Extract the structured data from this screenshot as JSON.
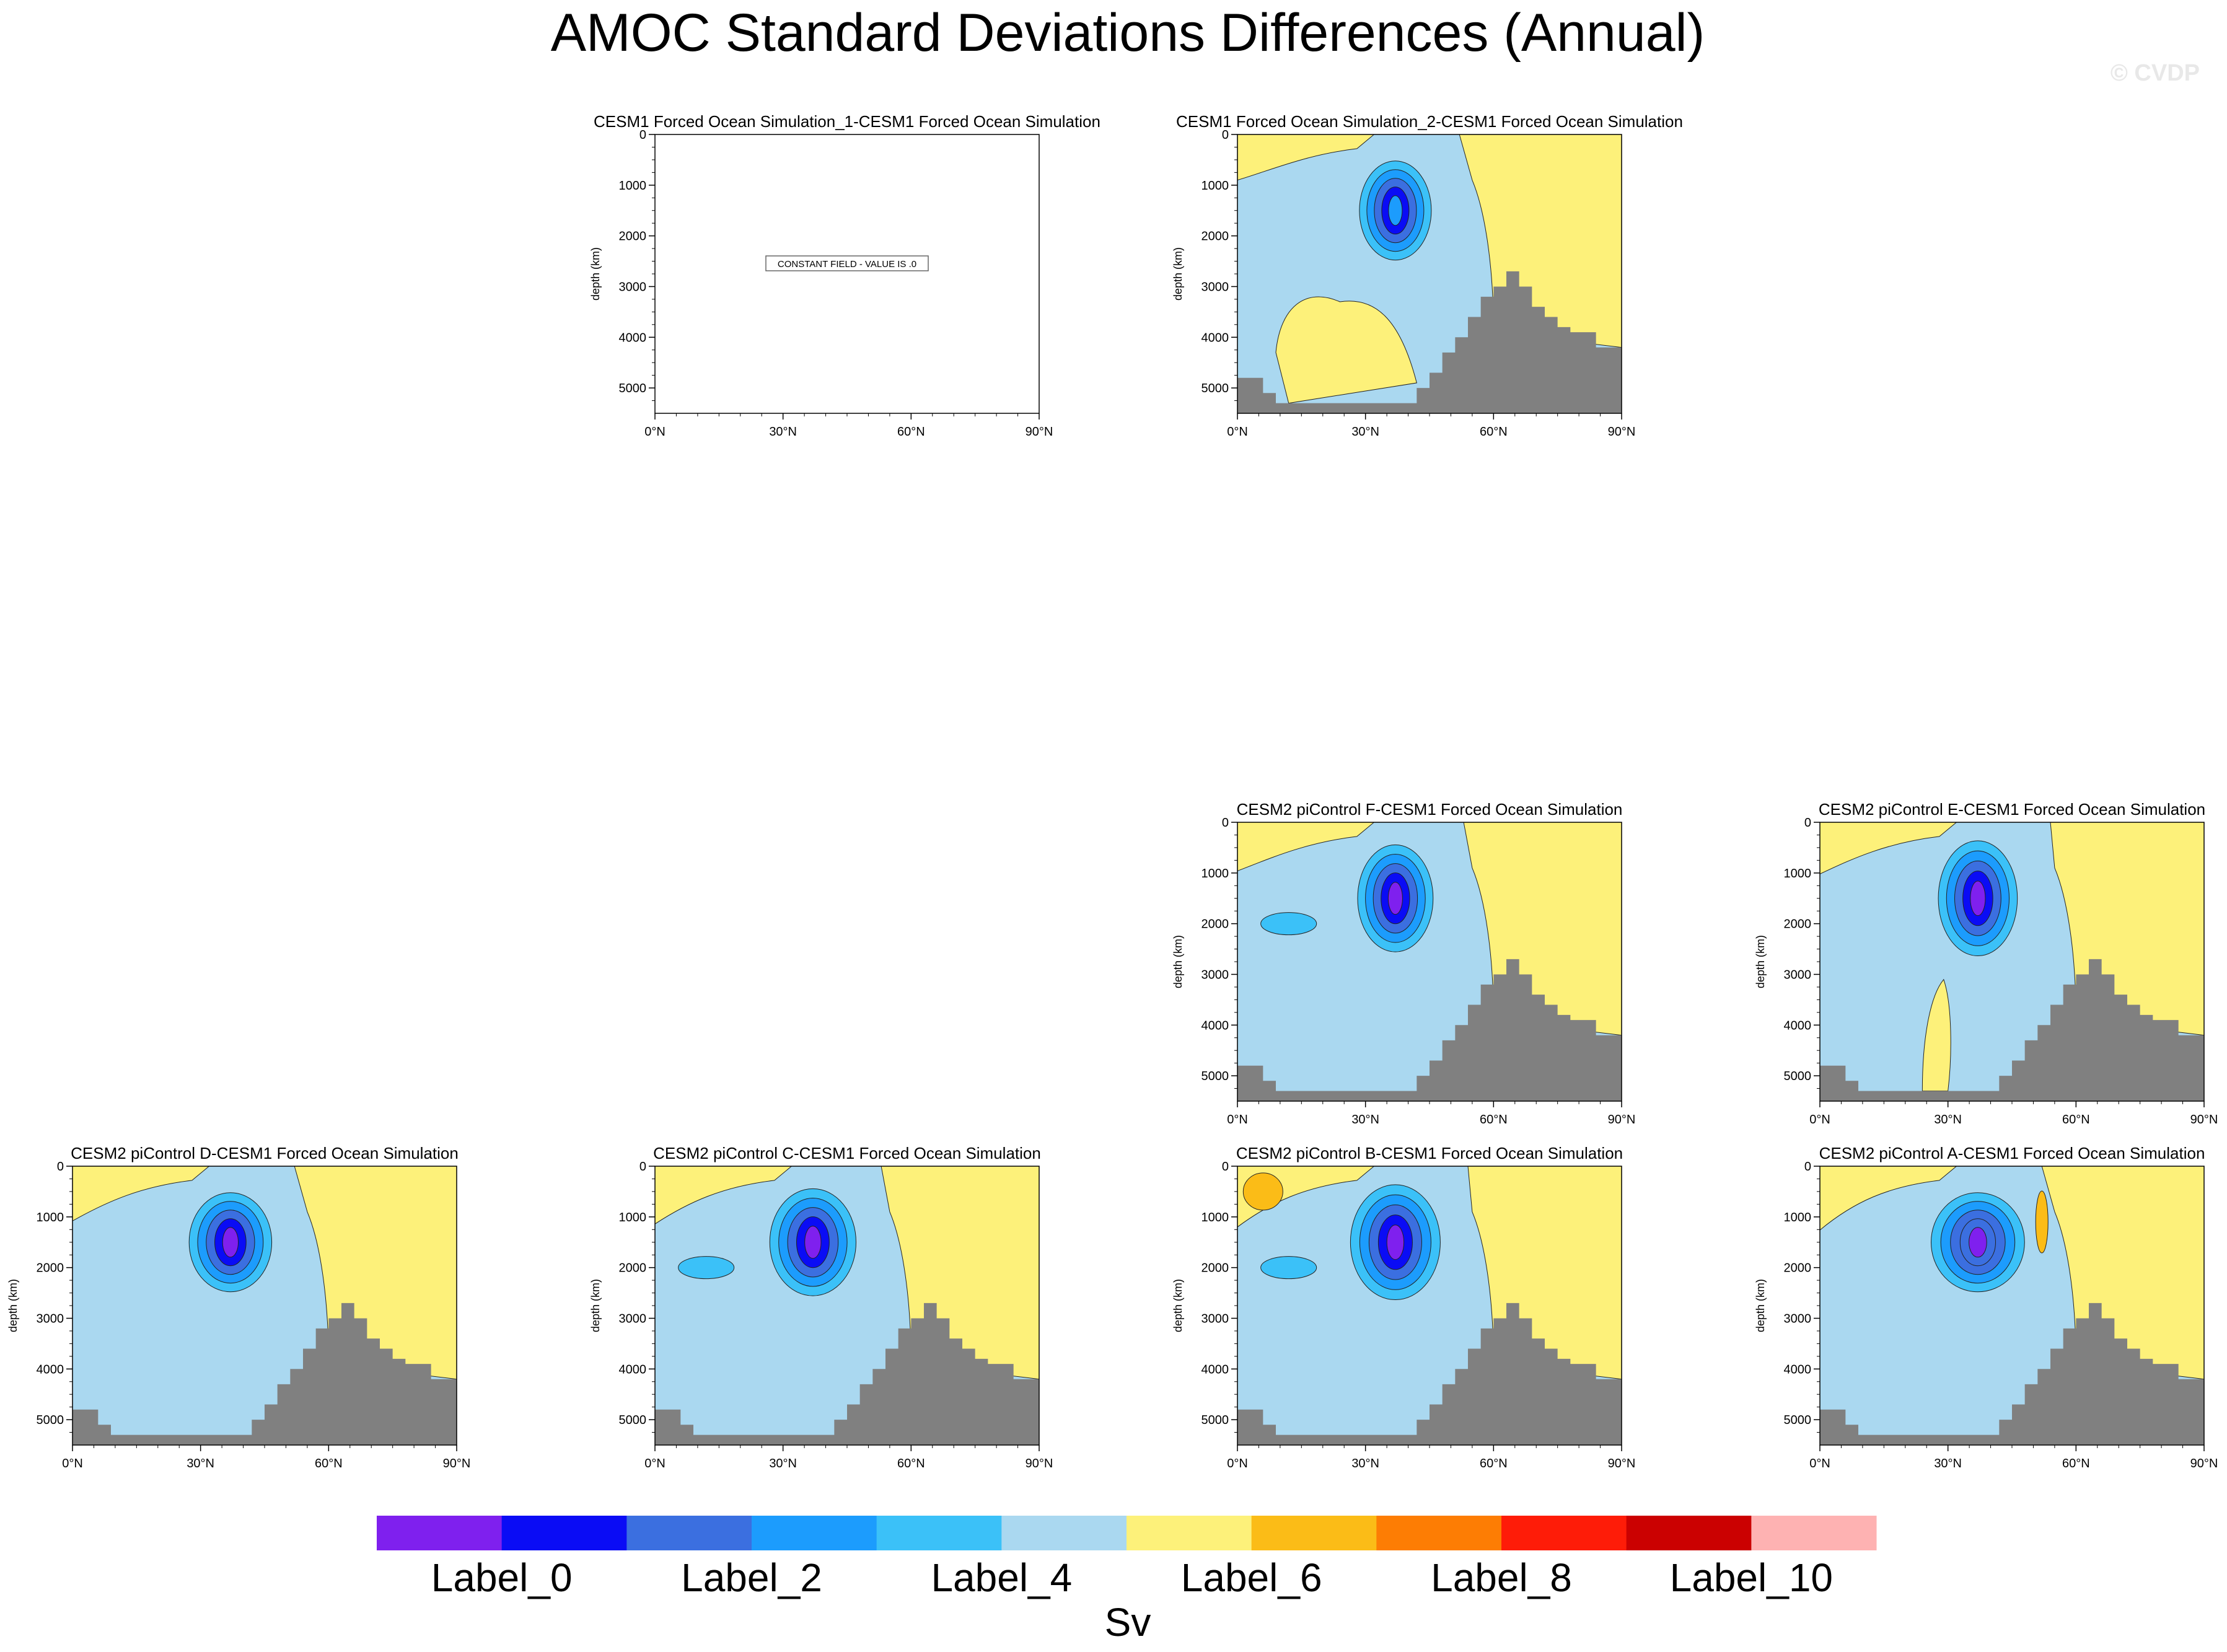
{
  "figure": {
    "title": "AMOC Standard Deviations Differences (Annual)",
    "watermark": "© CVDP"
  },
  "axes": {
    "ylabel": "depth (km)",
    "yticks": [
      0,
      1000,
      2000,
      3000,
      4000,
      5000
    ],
    "xticks": [
      "0°N",
      "30°N",
      "60°N",
      "90°N"
    ],
    "xlim": [
      0,
      90
    ],
    "ylim": [
      0,
      5500
    ]
  },
  "colors": {
    "levels": [
      "#7f20ee",
      "#0a0cf5",
      "#3b6fe0",
      "#1c9cfd",
      "#3bc1f8",
      "#aad8f0",
      "#fdf17a",
      "#fbbc17",
      "#fd7d04",
      "#fe1c08",
      "#cb0101",
      "#feb2b2"
    ],
    "land": "#808080",
    "background": "#aad8f0"
  },
  "panels": [
    {
      "title": "CESM1 Forced Ocean Simulation_1-CESM1 Forced Ocean Simulation",
      "constant": true,
      "note": "CONSTANT FIELD - VALUE IS .0"
    },
    {
      "title": "CESM1 Forced Ocean Simulation_2-CESM1 Forced Ocean Simulation",
      "constant": false,
      "variant": 0
    },
    {
      "title": "CESM2 piControl F-CESM1 Forced Ocean Simulation",
      "constant": false,
      "variant": 1
    },
    {
      "title": "CESM2 piControl E-CESM1 Forced Ocean Simulation",
      "constant": false,
      "variant": 2
    },
    {
      "title": "CESM2 piControl D-CESM1 Forced Ocean Simulation",
      "constant": false,
      "variant": 3
    },
    {
      "title": "CESM2 piControl C-CESM1 Forced Ocean Simulation",
      "constant": false,
      "variant": 4
    },
    {
      "title": "CESM2 piControl B-CESM1 Forced Ocean Simulation",
      "constant": false,
      "variant": 5
    },
    {
      "title": "CESM2 piControl A-CESM1 Forced Ocean Simulation",
      "constant": false,
      "variant": 6
    }
  ],
  "colorbar": {
    "labels": [
      "Label_0",
      "Label_2",
      "Label_4",
      "Label_6",
      "Label_8",
      "Label_10"
    ],
    "units": "Sv"
  },
  "chart_data": {
    "type": "heatmap",
    "title": "AMOC Standard Deviations Differences (Annual)",
    "ylabel": "depth (km)",
    "xlim": [
      0,
      90
    ],
    "ylim": [
      5500,
      0
    ],
    "units": "Sv",
    "legend": "bottom",
    "bathymetry_profile": {
      "lat": [
        0,
        3,
        6,
        9,
        12,
        15,
        18,
        21,
        24,
        27,
        30,
        33,
        36,
        39,
        42,
        45,
        48,
        51,
        54,
        57,
        60,
        63,
        66,
        69,
        72,
        75,
        78,
        81,
        84,
        87,
        90
      ],
      "depth": [
        4800,
        4800,
        5100,
        5300,
        5300,
        5300,
        5300,
        5300,
        5300,
        5300,
        5300,
        5300,
        5300,
        5300,
        5000,
        4700,
        4300,
        4000,
        3600,
        3200,
        3000,
        2700,
        3000,
        3400,
        3600,
        3800,
        3900,
        3900,
        4200,
        4200,
        4200
      ]
    },
    "max_anomaly": [
      {
        "panel": "CESM1 Forced Ocean Simulation_1-CESM1 Forced Ocean Simulation",
        "lat": 0,
        "depth": 0,
        "level": "constant 0"
      },
      {
        "panel": "CESM1 Forced Ocean Simulation_2-CESM1 Forced Ocean Simulation",
        "lat": 37,
        "depth": 1700,
        "level": "Label_2"
      },
      {
        "panel": "CESM2 piControl F-CESM1 Forced Ocean Simulation",
        "lat": 35,
        "depth": 1500,
        "level": "Label_0"
      },
      {
        "panel": "CESM2 piControl E-CESM1 Forced Ocean Simulation",
        "lat": 36,
        "depth": 1400,
        "level": "Label_0"
      },
      {
        "panel": "CESM2 piControl D-CESM1 Forced Ocean Simulation",
        "lat": 36,
        "depth": 1500,
        "level": "Label_0"
      },
      {
        "panel": "CESM2 piControl C-CESM1 Forced Ocean Simulation",
        "lat": 36,
        "depth": 1700,
        "level": "Label_0"
      },
      {
        "panel": "CESM2 piControl B-CESM1 Forced Ocean Simulation",
        "lat": 34,
        "depth": 1600,
        "level": "Label_0"
      },
      {
        "panel": "CESM2 piControl A-CESM1 Forced Ocean Simulation",
        "lat": 36,
        "depth": 1200,
        "level": "Label_1"
      }
    ]
  }
}
